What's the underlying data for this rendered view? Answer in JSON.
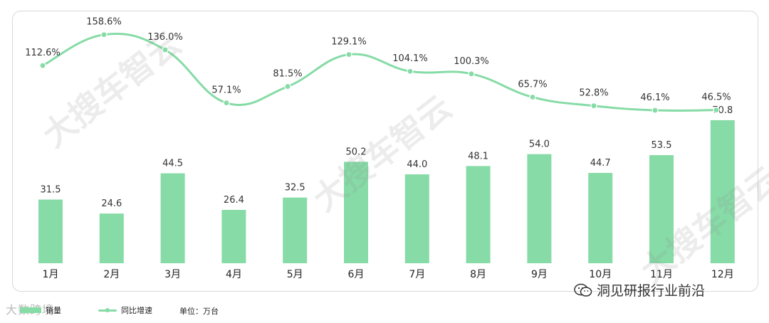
{
  "chart_data": {
    "type": "bar+line",
    "categories": [
      "1月",
      "2月",
      "3月",
      "4月",
      "5月",
      "6月",
      "7月",
      "8月",
      "9月",
      "10月",
      "11月",
      "12月"
    ],
    "series": [
      {
        "name": "销量",
        "type": "bar",
        "values": [
          31.5,
          24.6,
          44.5,
          26.4,
          32.5,
          50.2,
          44.0,
          48.1,
          54.0,
          44.7,
          53.5,
          70.8
        ],
        "labels": [
          "31.5",
          "24.6",
          "44.5",
          "26.4",
          "32.5",
          "50.2",
          "44.0",
          "48.1",
          "54.0",
          "44.7",
          "53.5",
          "70.8"
        ]
      },
      {
        "name": "同比增速",
        "type": "line",
        "values": [
          112.6,
          158.6,
          136.0,
          57.1,
          81.5,
          129.1,
          104.1,
          100.3,
          65.7,
          52.8,
          46.1,
          46.5
        ],
        "labels": [
          "112.6%",
          "158.6%",
          "136.0%",
          "57.1%",
          "81.5%",
          "129.1%",
          "104.1%",
          "100.3%",
          "65.7%",
          "52.8%",
          "46.1%",
          "46.5%"
        ]
      }
    ],
    "colors": {
      "bar": "#86dba6",
      "line": "#86dba6",
      "text": "#333333"
    },
    "legend_position": "bottom-left"
  },
  "legend": {
    "bar_label": "销量",
    "line_label": "同比增速"
  },
  "unit_label": "单位：万台",
  "watermarks": {
    "brand": "大数跨境",
    "source": "洞见研报行业前沿",
    "diagonal": "大搜车智云"
  },
  "icons": {
    "source": "wechat-icon"
  }
}
